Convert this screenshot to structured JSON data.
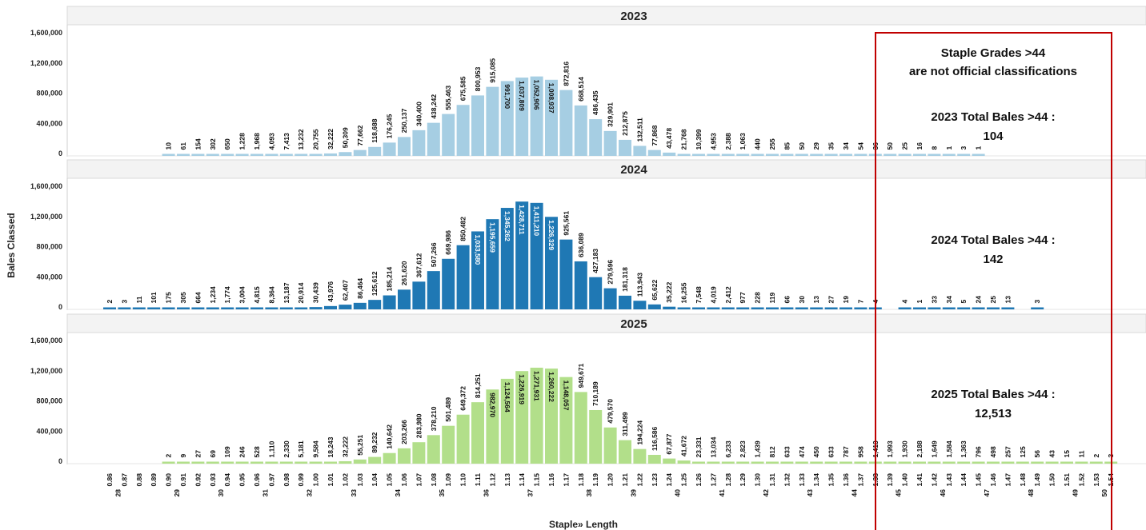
{
  "chart_data": {
    "type": "bar",
    "xlabel": "Staple» Length",
    "ylabel": "Bales Classed",
    "ylim": [
      0,
      1700000
    ],
    "yticks": [
      0,
      400000,
      800000,
      1200000,
      1600000
    ],
    "ytick_labels": [
      "0",
      "400,000",
      "800,000",
      "1,200,000",
      "1,600,000"
    ],
    "categories": [
      "0.86",
      "0.87",
      "0.88",
      "0.89",
      "0.90",
      "0.91",
      "0.92",
      "0.93",
      "0.94",
      "0.95",
      "0.96",
      "0.97",
      "0.98",
      "0.99",
      "1.00",
      "1.01",
      "1.02",
      "1.03",
      "1.04",
      "1.05",
      "1.06",
      "1.07",
      "1.08",
      "1.09",
      "1.10",
      "1.11",
      "1.12",
      "1.13",
      "1.14",
      "1.15",
      "1.16",
      "1.17",
      "1.18",
      "1.19",
      "1.20",
      "1.21",
      "1.22",
      "1.23",
      "1.24",
      "1.25",
      "1.26",
      "1.27",
      "1.28",
      "1.29",
      "1.30",
      "1.31",
      "1.32",
      "1.33",
      "1.34",
      "1.35",
      "1.36",
      "1.37",
      "1.38",
      "1.39",
      "1.40",
      "1.41",
      "1.42",
      "1.43",
      "1.44",
      "1.45",
      "1.46",
      "1.47",
      "1.48",
      "1.49",
      "1.50",
      "1.51",
      "1.52",
      "1.53",
      "1.54"
    ],
    "staple_grades": [
      {
        "grade": "28",
        "at": "0.87"
      },
      {
        "grade": "29",
        "at": "0.91"
      },
      {
        "grade": "30",
        "at": "0.94"
      },
      {
        "grade": "31",
        "at": "0.97"
      },
      {
        "grade": "32",
        "at": "1.00"
      },
      {
        "grade": "33",
        "at": "1.03"
      },
      {
        "grade": "34",
        "at": "1.06"
      },
      {
        "grade": "35",
        "at": "1.09"
      },
      {
        "grade": "36",
        "at": "1.12"
      },
      {
        "grade": "37",
        "at": "1.15"
      },
      {
        "grade": "38",
        "at": "1.19"
      },
      {
        "grade": "39",
        "at": "1.22"
      },
      {
        "grade": "40",
        "at": "1.25"
      },
      {
        "grade": "41",
        "at": "1.28"
      },
      {
        "grade": "42",
        "at": "1.31"
      },
      {
        "grade": "43",
        "at": "1.34"
      },
      {
        "grade": "44",
        "at": "1.37"
      },
      {
        "grade": "45",
        "at": "1.40"
      },
      {
        "grade": "46",
        "at": "1.43"
      },
      {
        "grade": "47",
        "at": "1.46"
      },
      {
        "grade": "48",
        "at": "1.49"
      },
      {
        "grade": "49",
        "at": "1.52"
      },
      {
        "grade": "50",
        "at": "1.54"
      }
    ],
    "panels": [
      {
        "title": "2023",
        "color": "#a6cee3",
        "values": [
          null,
          null,
          null,
          null,
          10,
          61,
          154,
          302,
          650,
          1228,
          1968,
          4093,
          7413,
          13232,
          20755,
          32222,
          50309,
          77662,
          118688,
          176245,
          250137,
          340400,
          438242,
          555463,
          675585,
          800953,
          915085,
          991700,
          1037809,
          1052906,
          1008937,
          872816,
          668514,
          486435,
          329901,
          212875,
          132511,
          77868,
          43478,
          21768,
          10399,
          4953,
          2388,
          1063,
          440,
          255,
          85,
          50,
          29,
          35,
          34,
          54,
          36,
          50,
          25,
          16,
          8,
          1,
          3,
          1,
          null,
          null,
          null,
          null,
          null,
          null,
          null,
          null,
          null
        ],
        "labels": [
          null,
          null,
          null,
          null,
          "10",
          "61",
          "154",
          "302",
          "650",
          "1,228",
          "1,968",
          "4,093",
          "7,413",
          "13,232",
          "20,755",
          "32,222",
          "50,309",
          "77,662",
          "118,688",
          "176,245",
          "250,137",
          "340,400",
          "438,242",
          "555,463",
          "675,585",
          "800,953",
          "915,085",
          "991,700",
          "1,037,809",
          "1,052,906",
          "1,008,937",
          "872,816",
          "668,514",
          "486,435",
          "329,901",
          "212,875",
          "132,511",
          "77,868",
          "43,478",
          "21,768",
          "10,399",
          "4,953",
          "2,388",
          "1,063",
          "440",
          "255",
          "85",
          "50",
          "29",
          "35",
          "34",
          "54",
          "36",
          "50",
          "25",
          "16",
          "8",
          "1",
          "3",
          "1",
          null,
          null,
          null,
          null,
          null,
          null,
          null,
          null,
          null
        ]
      },
      {
        "title": "2024",
        "color": "#1f78b4",
        "values": [
          2,
          3,
          11,
          101,
          175,
          305,
          664,
          1234,
          1774,
          3004,
          4815,
          8364,
          13187,
          20914,
          30439,
          43976,
          62407,
          86464,
          125612,
          185214,
          261620,
          367612,
          507266,
          669986,
          850482,
          1033580,
          1195659,
          1345262,
          1428711,
          1411210,
          1226329,
          925561,
          636089,
          427183,
          279596,
          181318,
          113943,
          65622,
          35222,
          16255,
          7548,
          4019,
          2412,
          977,
          228,
          119,
          66,
          30,
          13,
          27,
          19,
          7,
          4,
          null,
          4,
          1,
          33,
          34,
          5,
          24,
          25,
          13,
          null,
          3,
          null,
          null,
          null,
          null,
          null
        ],
        "labels": [
          "2",
          "3",
          "11",
          "101",
          "175",
          "305",
          "664",
          "1,234",
          "1,774",
          "3,004",
          "4,815",
          "8,364",
          "13,187",
          "20,914",
          "30,439",
          "43,976",
          "62,407",
          "86,464",
          "125,612",
          "185,214",
          "261,620",
          "367,612",
          "507,266",
          "669,986",
          "850,482",
          "1,033,580",
          "1,195,659",
          "1,345,262",
          "1,428,711",
          "1,411,210",
          "1,226,329",
          "925,561",
          "636,089",
          "427,183",
          "279,596",
          "181,318",
          "113,943",
          "65,622",
          "35,222",
          "16,255",
          "7,548",
          "4,019",
          "2,412",
          "977",
          "228",
          "119",
          "66",
          "30",
          "13",
          "27",
          "19",
          "7",
          "4",
          null,
          "4",
          "1",
          "33",
          "34",
          "5",
          "24",
          "25",
          "13",
          null,
          "3",
          null,
          null,
          null,
          null,
          null
        ]
      },
      {
        "title": "2025",
        "color": "#b2df8a",
        "values": [
          null,
          null,
          null,
          null,
          2,
          9,
          27,
          69,
          109,
          246,
          528,
          1110,
          2330,
          5181,
          9584,
          18243,
          32222,
          55251,
          89232,
          140642,
          203266,
          283980,
          378210,
          501489,
          649372,
          814251,
          982970,
          1124564,
          1226919,
          1271931,
          1260222,
          1148057,
          949671,
          710189,
          479570,
          311499,
          194224,
          116586,
          67877,
          41672,
          23331,
          13034,
          6233,
          2823,
          1439,
          812,
          633,
          474,
          450,
          633,
          787,
          958,
          1413,
          1993,
          1930,
          2188,
          1649,
          1584,
          1363,
          796,
          498,
          257,
          125,
          56,
          43,
          15,
          11,
          2,
          3
        ],
        "labels": [
          null,
          null,
          null,
          null,
          "2",
          "9",
          "27",
          "69",
          "109",
          "246",
          "528",
          "1,110",
          "2,330",
          "5,181",
          "9,584",
          "18,243",
          "32,222",
          "55,251",
          "89,232",
          "140,642",
          "203,266",
          "283,980",
          "378,210",
          "501,489",
          "649,372",
          "814,251",
          "982,970",
          "1,124,564",
          "1,226,919",
          "1,271,931",
          "1,260,222",
          "1,148,057",
          "949,671",
          "710,189",
          "479,570",
          "311,499",
          "194,224",
          "116,586",
          "67,877",
          "41,672",
          "23,331",
          "13,034",
          "6,233",
          "2,823",
          "1,439",
          "812",
          "633",
          "474",
          "450",
          "633",
          "787",
          "958",
          "1,413",
          "1,993",
          "1,930",
          "2,188",
          "1,649",
          "1,584",
          "1,363",
          "796",
          "498",
          "257",
          "125",
          "56",
          "43",
          "15",
          "11",
          "2",
          "3"
        ]
      }
    ],
    "annotation": {
      "color": "#c00000",
      "header_lines": [
        "Staple Grades >44",
        "are not official classifications"
      ],
      "totals": [
        {
          "line1": "2023 Total Bales >44 :",
          "line2": "104"
        },
        {
          "line1": "2024 Total Bales >44 :",
          "line2": "142"
        },
        {
          "line1": "2025 Total Bales >44 :",
          "line2": "12,513"
        }
      ]
    },
    "grid": false,
    "legend": "none"
  }
}
